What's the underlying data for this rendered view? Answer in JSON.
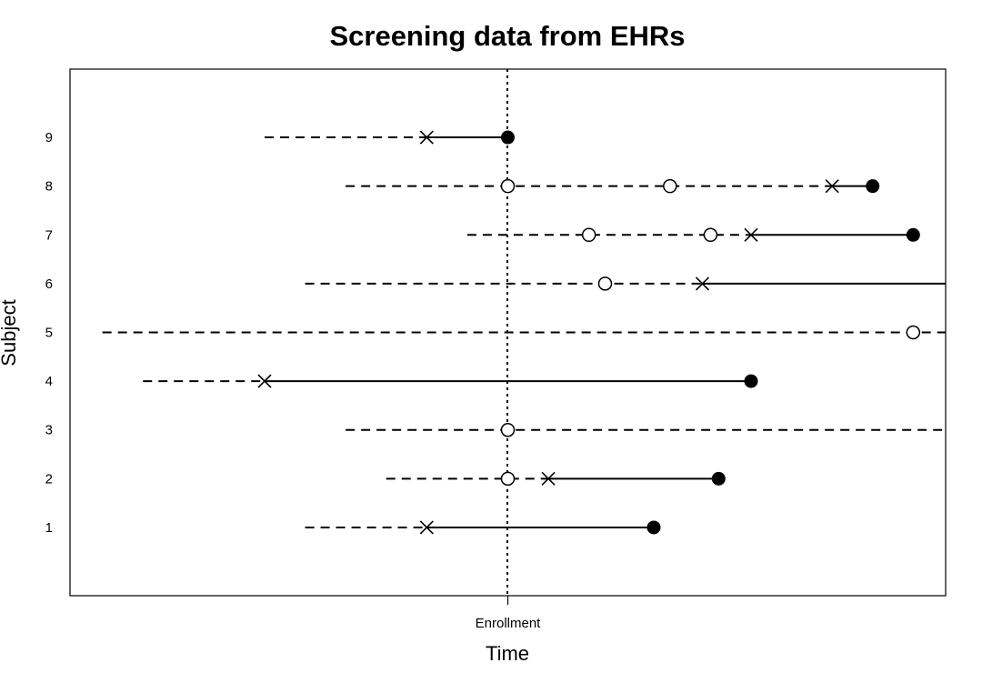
{
  "chart_data": {
    "type": "timeline",
    "title": "Screening data from EHRs",
    "xlabel": "Time",
    "ylabel": "Subject",
    "x_ticks": [
      {
        "x": 0,
        "label": "Enrollment"
      }
    ],
    "xlim": [
      -13.5,
      13.5
    ],
    "ylim": [
      -0.4,
      10.4
    ],
    "reference_line": {
      "x": 0,
      "style": "dotted"
    },
    "y_ticks": [
      "1",
      "2",
      "3",
      "4",
      "5",
      "6",
      "7",
      "8",
      "9"
    ],
    "subjects": [
      {
        "id": "1",
        "y": 1,
        "start": -6.25,
        "screen_neg": [],
        "diagnosis": -2.5,
        "end": 4.5,
        "end_event": "filled"
      },
      {
        "id": "2",
        "y": 2,
        "start": -3.75,
        "screen_neg": [
          0
        ],
        "diagnosis": 1.25,
        "end": 6.5,
        "end_event": "filled"
      },
      {
        "id": "3",
        "y": 3,
        "start": -5.0,
        "screen_neg": [
          0
        ],
        "diagnosis": null,
        "end": 13.5,
        "end_event": "none"
      },
      {
        "id": "4",
        "y": 4,
        "start": -11.25,
        "screen_neg": [],
        "diagnosis": -7.5,
        "end": 7.5,
        "end_event": "filled"
      },
      {
        "id": "5",
        "y": 5,
        "start": -12.5,
        "screen_neg": [
          12.5
        ],
        "diagnosis": null,
        "end": 13.5,
        "end_event": "none"
      },
      {
        "id": "6",
        "y": 6,
        "start": -6.25,
        "screen_neg": [
          3.0
        ],
        "diagnosis": 6.0,
        "end": 13.5,
        "end_event": "none"
      },
      {
        "id": "7",
        "y": 7,
        "start": -1.25,
        "screen_neg": [
          2.5,
          6.25
        ],
        "diagnosis": 7.5,
        "end": 12.5,
        "end_event": "filled"
      },
      {
        "id": "8",
        "y": 8,
        "start": -5.0,
        "screen_neg": [
          0,
          5.0
        ],
        "diagnosis": 10.0,
        "end": 11.25,
        "end_event": "filled"
      },
      {
        "id": "9",
        "y": 9,
        "start": -7.5,
        "screen_neg": [],
        "diagnosis": -2.5,
        "end": 0,
        "end_event": "filled"
      }
    ],
    "colors": {
      "ink": "#000000",
      "background": "#ffffff"
    }
  }
}
